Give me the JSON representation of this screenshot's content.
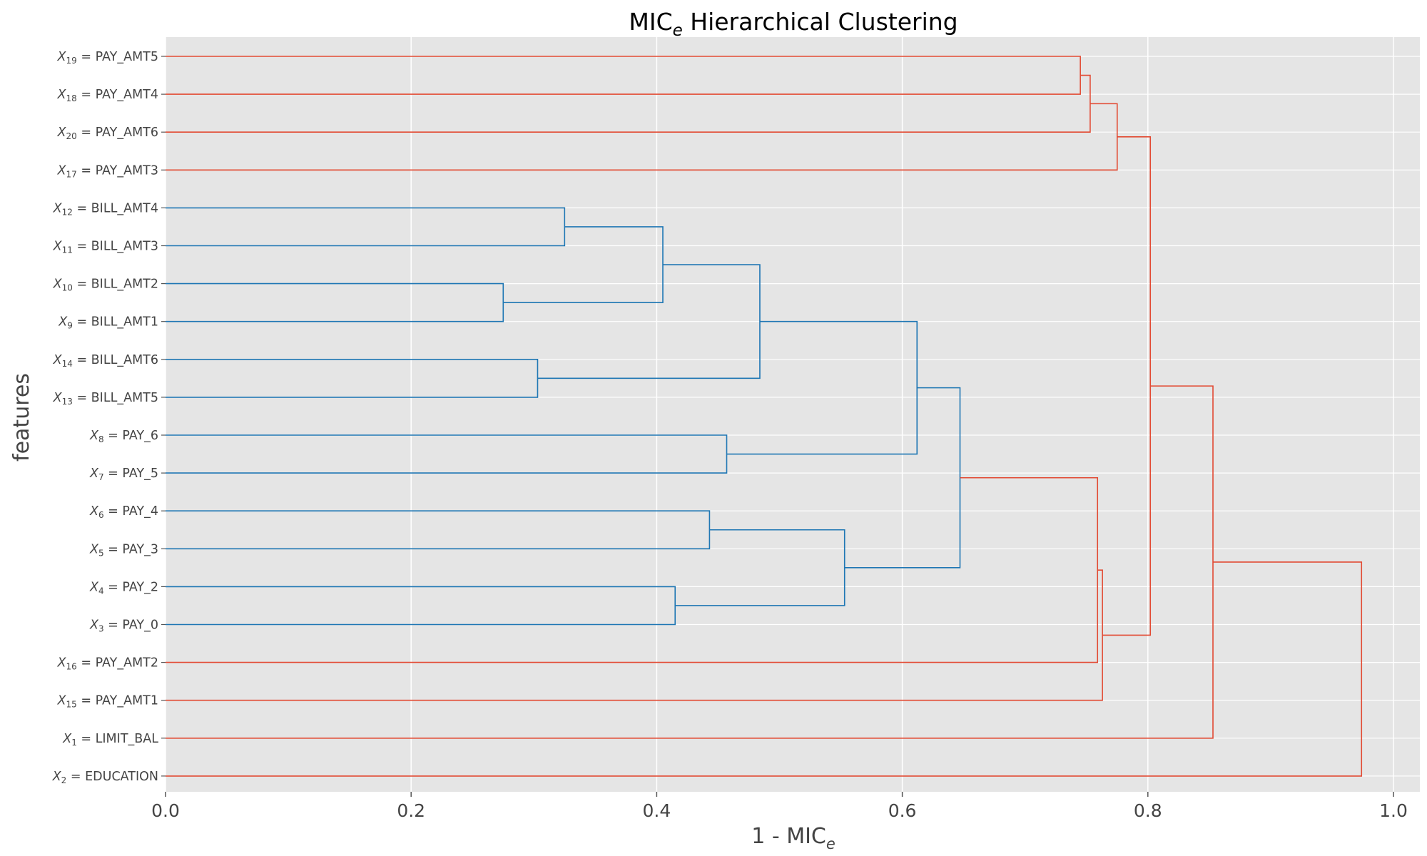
{
  "chart_data": {
    "type": "dendrogram",
    "title": {
      "main": "MIC",
      "sub": "e",
      "rest": " Hierarchical Clustering"
    },
    "xlabel": {
      "main": "1 - MIC",
      "sub": "e"
    },
    "ylabel": "features",
    "xlim": [
      0,
      1.02
    ],
    "xticks": [
      "0.0",
      "0.2",
      "0.4",
      "0.6",
      "0.8",
      "1.0"
    ],
    "grid": true,
    "colors": {
      "background": "#e5e5e5",
      "grid": "#ffffff",
      "cluster": "#1f77b4",
      "above_threshold": "#e24a33",
      "tick": "#555555"
    },
    "leaves": [
      {
        "id": "x19",
        "sym": "X",
        "sub": "19",
        "name": "PAY_AMT5"
      },
      {
        "id": "x18",
        "sym": "X",
        "sub": "18",
        "name": "PAY_AMT4"
      },
      {
        "id": "x20",
        "sym": "X",
        "sub": "20",
        "name": "PAY_AMT6"
      },
      {
        "id": "x17",
        "sym": "X",
        "sub": "17",
        "name": "PAY_AMT3"
      },
      {
        "id": "x12",
        "sym": "X",
        "sub": "12",
        "name": "BILL_AMT4"
      },
      {
        "id": "x11",
        "sym": "X",
        "sub": "11",
        "name": "BILL_AMT3"
      },
      {
        "id": "x10",
        "sym": "X",
        "sub": "10",
        "name": "BILL_AMT2"
      },
      {
        "id": "x9",
        "sym": "X",
        "sub": "9",
        "name": "BILL_AMT1"
      },
      {
        "id": "x14",
        "sym": "X",
        "sub": "14",
        "name": "BILL_AMT6"
      },
      {
        "id": "x13",
        "sym": "X",
        "sub": "13",
        "name": "BILL_AMT5"
      },
      {
        "id": "x8",
        "sym": "X",
        "sub": "8",
        "name": "PAY_6"
      },
      {
        "id": "x7",
        "sym": "X",
        "sub": "7",
        "name": "PAY_5"
      },
      {
        "id": "x6",
        "sym": "X",
        "sub": "6",
        "name": "PAY_4"
      },
      {
        "id": "x5",
        "sym": "X",
        "sub": "5",
        "name": "PAY_3"
      },
      {
        "id": "x4",
        "sym": "X",
        "sub": "4",
        "name": "PAY_2"
      },
      {
        "id": "x3",
        "sym": "X",
        "sub": "3",
        "name": "PAY_0"
      },
      {
        "id": "x16",
        "sym": "X",
        "sub": "16",
        "name": "PAY_AMT2"
      },
      {
        "id": "x15",
        "sym": "X",
        "sub": "15",
        "name": "PAY_AMT1"
      },
      {
        "id": "x1",
        "sym": "X",
        "sub": "1",
        "name": "LIMIT_BAL"
      },
      {
        "id": "x2",
        "sym": "X",
        "sub": "2",
        "name": "EDUCATION"
      }
    ],
    "merges": [
      {
        "id": "m1",
        "a": "x19",
        "b": "x18",
        "height": 0.745,
        "color": "above_threshold"
      },
      {
        "id": "m2",
        "a": "m1",
        "b": "x20",
        "height": 0.753,
        "color": "above_threshold"
      },
      {
        "id": "m3",
        "a": "m2",
        "b": "x17",
        "height": 0.775,
        "color": "above_threshold"
      },
      {
        "id": "m4",
        "a": "x12",
        "b": "x11",
        "height": 0.325,
        "color": "cluster"
      },
      {
        "id": "m5",
        "a": "x10",
        "b": "x9",
        "height": 0.275,
        "color": "cluster"
      },
      {
        "id": "m6",
        "a": "m4",
        "b": "m5",
        "height": 0.405,
        "color": "cluster"
      },
      {
        "id": "m7",
        "a": "x14",
        "b": "x13",
        "height": 0.303,
        "color": "cluster"
      },
      {
        "id": "m8",
        "a": "m6",
        "b": "m7",
        "height": 0.484,
        "color": "cluster"
      },
      {
        "id": "m9",
        "a": "x8",
        "b": "x7",
        "height": 0.457,
        "color": "cluster"
      },
      {
        "id": "m10",
        "a": "m8",
        "b": "m9",
        "height": 0.612,
        "color": "cluster"
      },
      {
        "id": "m11",
        "a": "x6",
        "b": "x5",
        "height": 0.443,
        "color": "cluster"
      },
      {
        "id": "m12",
        "a": "x4",
        "b": "x3",
        "height": 0.415,
        "color": "cluster"
      },
      {
        "id": "m13",
        "a": "m11",
        "b": "m12",
        "height": 0.553,
        "color": "cluster"
      },
      {
        "id": "m14",
        "a": "m10",
        "b": "m13",
        "height": 0.647,
        "color": "cluster"
      },
      {
        "id": "m15",
        "a": "m14",
        "b": "x16",
        "height": 0.759,
        "color": "above_threshold"
      },
      {
        "id": "m16",
        "a": "m15",
        "b": "x15",
        "height": 0.763,
        "color": "above_threshold"
      },
      {
        "id": "m17",
        "a": "m3",
        "b": "m16",
        "height": 0.802,
        "color": "above_threshold"
      },
      {
        "id": "m18",
        "a": "m17",
        "b": "x1",
        "height": 0.853,
        "color": "above_threshold"
      },
      {
        "id": "m19",
        "a": "m18",
        "b": "x2",
        "height": 0.974,
        "color": "above_threshold"
      }
    ]
  }
}
